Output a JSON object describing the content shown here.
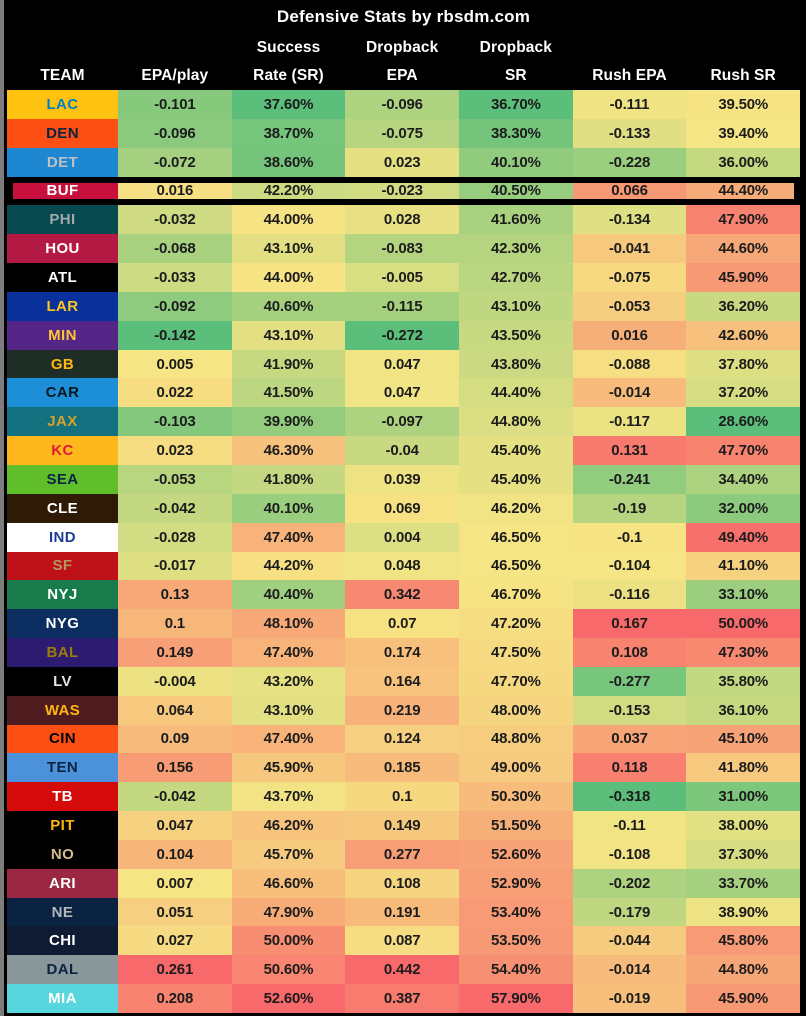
{
  "title": "Defensive Stats by rbsdm.com",
  "header": {
    "line2": [
      "",
      "",
      "Success",
      "Dropback",
      "Dropback",
      "",
      ""
    ],
    "line3": [
      "TEAM",
      "EPA/play",
      "Rate (SR)",
      "EPA",
      "SR",
      "Rush EPA",
      "Rush SR"
    ]
  },
  "highlight_team": "BUF",
  "colors": {
    "background": "#000000",
    "frame_left_strip": "#7D7D7D",
    "header_text": "#FFFFFF",
    "cell_text": "#1C1C1C",
    "highlight_border": "#000000",
    "scale_low_green": "#5BBE7B",
    "scale_mid_yellow": "#F6E584",
    "scale_high_red": "#F8696B"
  },
  "chart_data": {
    "type": "heatmap",
    "title": "Defensive Stats by rbsdm.com",
    "columns": [
      "TEAM",
      "EPA/play",
      "Success Rate (SR)",
      "Dropback EPA",
      "Dropback SR",
      "Rush EPA",
      "Rush SR"
    ],
    "color_scale": "per-column 3-stop scale: green at column min, yellow at column median, red at column max",
    "rows": [
      {
        "team": "LAC",
        "team_bg": "#FFC20E",
        "team_fg": "#0080C6",
        "values": [
          "-0.101",
          "37.60%",
          "-0.096",
          "36.70%",
          "-0.111",
          "39.50%"
        ]
      },
      {
        "team": "DEN",
        "team_bg": "#FB4F14",
        "team_fg": "#0A2343",
        "values": [
          "-0.096",
          "38.70%",
          "-0.075",
          "38.30%",
          "-0.133",
          "39.40%"
        ]
      },
      {
        "team": "DET",
        "team_bg": "#1E87D1",
        "team_fg": "#BBC0C4",
        "values": [
          "-0.072",
          "38.60%",
          "0.023",
          "40.10%",
          "-0.228",
          "36.00%"
        ]
      },
      {
        "team": "BUF",
        "team_bg": "#C8103E",
        "team_fg": "#FFFFFF",
        "values": [
          "0.016",
          "42.20%",
          "-0.023",
          "40.50%",
          "0.066",
          "44.40%"
        ]
      },
      {
        "team": "PHI",
        "team_bg": "#07494F",
        "team_fg": "#A2A9AC",
        "values": [
          "-0.032",
          "44.00%",
          "0.028",
          "41.60%",
          "-0.134",
          "47.90%"
        ]
      },
      {
        "team": "HOU",
        "team_bg": "#B31942",
        "team_fg": "#FFFFFF",
        "values": [
          "-0.068",
          "43.10%",
          "-0.083",
          "42.30%",
          "-0.041",
          "44.60%"
        ]
      },
      {
        "team": "ATL",
        "team_bg": "#000000",
        "team_fg": "#FFFFFF",
        "values": [
          "-0.033",
          "44.00%",
          "-0.005",
          "42.70%",
          "-0.075",
          "45.90%"
        ]
      },
      {
        "team": "LAR",
        "team_bg": "#0A309B",
        "team_fg": "#FFC61E",
        "values": [
          "-0.092",
          "40.60%",
          "-0.115",
          "43.10%",
          "-0.053",
          "36.20%"
        ]
      },
      {
        "team": "MIN",
        "team_bg": "#552588",
        "team_fg": "#FFC62F",
        "values": [
          "-0.142",
          "43.10%",
          "-0.272",
          "43.50%",
          "0.016",
          "42.60%"
        ]
      },
      {
        "team": "GB",
        "team_bg": "#1E2D26",
        "team_fg": "#FFB612",
        "values": [
          "0.005",
          "41.90%",
          "0.047",
          "43.80%",
          "-0.088",
          "37.80%"
        ]
      },
      {
        "team": "CAR",
        "team_bg": "#1D8FD6",
        "team_fg": "#0D1722",
        "values": [
          "0.022",
          "41.50%",
          "0.047",
          "44.40%",
          "-0.014",
          "37.20%"
        ]
      },
      {
        "team": "JAX",
        "team_bg": "#13717F",
        "team_fg": "#D7A22A",
        "values": [
          "-0.103",
          "39.90%",
          "-0.097",
          "44.80%",
          "-0.117",
          "28.60%"
        ]
      },
      {
        "team": "KC",
        "team_bg": "#FFB81C",
        "team_fg": "#E31837",
        "values": [
          "0.023",
          "46.30%",
          "-0.04",
          "45.40%",
          "0.131",
          "47.70%"
        ]
      },
      {
        "team": "SEA",
        "team_bg": "#5FBE2A",
        "team_fg": "#0A2343",
        "values": [
          "-0.053",
          "41.80%",
          "0.039",
          "45.40%",
          "-0.241",
          "34.40%"
        ]
      },
      {
        "team": "CLE",
        "team_bg": "#2E1A05",
        "team_fg": "#FFFFFF",
        "values": [
          "-0.042",
          "40.10%",
          "0.069",
          "46.20%",
          "-0.19",
          "32.00%"
        ]
      },
      {
        "team": "IND",
        "team_bg": "#FFFFFF",
        "team_fg": "#1C3F94",
        "values": [
          "-0.028",
          "47.40%",
          "0.004",
          "46.50%",
          "-0.1",
          "49.40%"
        ]
      },
      {
        "team": "SF",
        "team_bg": "#BD1017",
        "team_fg": "#B3995D",
        "values": [
          "-0.017",
          "44.20%",
          "0.048",
          "46.50%",
          "-0.104",
          "41.10%"
        ]
      },
      {
        "team": "NYJ",
        "team_bg": "#177B4B",
        "team_fg": "#FFFFFF",
        "values": [
          "0.13",
          "40.40%",
          "0.342",
          "46.70%",
          "-0.116",
          "33.10%"
        ]
      },
      {
        "team": "NYG",
        "team_bg": "#0B2D60",
        "team_fg": "#FFFFFF",
        "values": [
          "0.1",
          "48.10%",
          "0.07",
          "47.20%",
          "0.167",
          "50.00%"
        ]
      },
      {
        "team": "BAL",
        "team_bg": "#2C1B70",
        "team_fg": "#9E7C0C",
        "values": [
          "0.149",
          "47.40%",
          "0.174",
          "47.50%",
          "0.108",
          "47.30%"
        ]
      },
      {
        "team": "LV",
        "team_bg": "#000000",
        "team_fg": "#E3E3E3",
        "values": [
          "-0.004",
          "43.20%",
          "0.164",
          "47.70%",
          "-0.277",
          "35.80%"
        ]
      },
      {
        "team": "WAS",
        "team_bg": "#4E1B1E",
        "team_fg": "#FFB612",
        "values": [
          "0.064",
          "43.10%",
          "0.219",
          "48.00%",
          "-0.153",
          "36.10%"
        ]
      },
      {
        "team": "CIN",
        "team_bg": "#FB4F14",
        "team_fg": "#000000",
        "values": [
          "0.09",
          "47.40%",
          "0.124",
          "48.80%",
          "0.037",
          "45.10%"
        ]
      },
      {
        "team": "TEN",
        "team_bg": "#4B92DB",
        "team_fg": "#0C2340",
        "values": [
          "0.156",
          "45.90%",
          "0.185",
          "49.00%",
          "0.118",
          "41.80%"
        ]
      },
      {
        "team": "TB",
        "team_bg": "#D50A0A",
        "team_fg": "#FFFFFF",
        "values": [
          "-0.042",
          "43.70%",
          "0.1",
          "50.30%",
          "-0.318",
          "31.00%"
        ]
      },
      {
        "team": "PIT",
        "team_bg": "#000000",
        "team_fg": "#FFB612",
        "values": [
          "0.047",
          "46.20%",
          "0.149",
          "51.50%",
          "-0.11",
          "38.00%"
        ]
      },
      {
        "team": "NO",
        "team_bg": "#000000",
        "team_fg": "#D3BC8D",
        "values": [
          "0.104",
          "45.70%",
          "0.277",
          "52.60%",
          "-0.108",
          "37.30%"
        ]
      },
      {
        "team": "ARI",
        "team_bg": "#9B2743",
        "team_fg": "#FFFFFF",
        "values": [
          "0.007",
          "46.60%",
          "0.108",
          "52.90%",
          "-0.202",
          "33.70%"
        ]
      },
      {
        "team": "NE",
        "team_bg": "#0A2342",
        "team_fg": "#B0B7BC",
        "values": [
          "0.051",
          "47.90%",
          "0.191",
          "53.40%",
          "-0.179",
          "38.90%"
        ]
      },
      {
        "team": "CHI",
        "team_bg": "#0E1B33",
        "team_fg": "#FFFFFF",
        "values": [
          "0.027",
          "50.00%",
          "0.087",
          "53.50%",
          "-0.044",
          "45.80%"
        ]
      },
      {
        "team": "DAL",
        "team_bg": "#8A979A",
        "team_fg": "#0A2343",
        "values": [
          "0.261",
          "50.60%",
          "0.442",
          "54.40%",
          "-0.014",
          "44.80%"
        ]
      },
      {
        "team": "MIA",
        "team_bg": "#58D6DD",
        "team_fg": "#FFFFFF",
        "values": [
          "0.208",
          "52.60%",
          "0.387",
          "57.90%",
          "-0.019",
          "45.90%"
        ]
      }
    ]
  }
}
